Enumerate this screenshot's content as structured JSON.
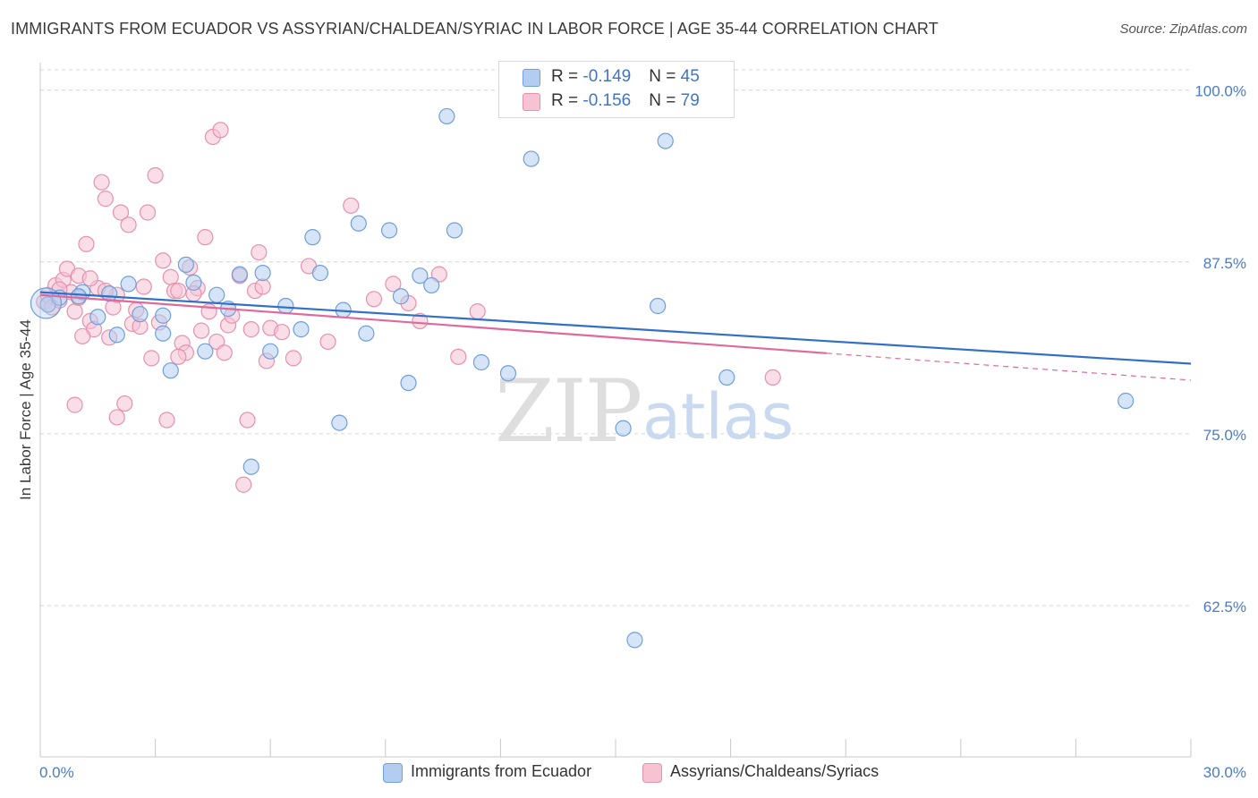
{
  "header": {
    "title": "IMMIGRANTS FROM ECUADOR VS ASSYRIAN/CHALDEAN/SYRIAC IN LABOR FORCE | AGE 35-44 CORRELATION CHART",
    "source": "Source: ZipAtlas.com"
  },
  "watermark": {
    "zip": "ZIP",
    "atlas": "atlas"
  },
  "legend": {
    "series1": {
      "r_label": "R = ",
      "r_value": "-0.149",
      "n_label": "N = ",
      "n_value": "45"
    },
    "series2": {
      "r_label": "R = ",
      "r_value": "-0.156",
      "n_label": "N = ",
      "n_value": "79"
    }
  },
  "colors": {
    "blue_fill": "#b3cdf0",
    "blue_stroke": "#6f9fdc",
    "blue_line": "#3270c8",
    "pink_fill": "#f6c3d3",
    "pink_stroke": "#e890ad",
    "pink_line": "#e0689a",
    "grid": "#d6d6d6",
    "axis_text": "#4a7bc8"
  },
  "chart_data": {
    "type": "scatter",
    "xlabel": "",
    "ylabel": "In Labor Force | Age 35-44",
    "xlim": [
      0,
      30
    ],
    "ylim": [
      51.5,
      102
    ],
    "x_tick_labels": [
      "0.0%",
      "30.0%"
    ],
    "y_ticks": [
      62.5,
      75.0,
      87.5,
      100.0
    ],
    "y_tick_labels": [
      "62.5%",
      "75.0%",
      "87.5%",
      "100.0%"
    ],
    "grid": "horizontal dashed",
    "legend_position": "top-center and bottom",
    "series": [
      {
        "name": "Immigrants from Ecuador",
        "color": "#6f9fdc",
        "trend": {
          "x": [
            0,
            30
          ],
          "y": [
            85.3,
            80.1
          ],
          "dashed_from": null
        },
        "points": [
          [
            0.2,
            84.4
          ],
          [
            1.1,
            85.3
          ],
          [
            2.3,
            85.9
          ],
          [
            2.6,
            83.7
          ],
          [
            3.2,
            83.6
          ],
          [
            3.4,
            79.6
          ],
          [
            3.2,
            82.3
          ],
          [
            3.8,
            87.3
          ],
          [
            4.0,
            86.0
          ],
          [
            4.3,
            81.0
          ],
          [
            4.6,
            85.1
          ],
          [
            4.9,
            84.1
          ],
          [
            5.2,
            86.6
          ],
          [
            5.5,
            72.6
          ],
          [
            5.8,
            86.7
          ],
          [
            6.0,
            81.0
          ],
          [
            6.4,
            84.3
          ],
          [
            6.8,
            82.6
          ],
          [
            7.1,
            89.3
          ],
          [
            7.3,
            86.7
          ],
          [
            7.8,
            75.8
          ],
          [
            7.9,
            84.0
          ],
          [
            8.3,
            90.3
          ],
          [
            8.5,
            82.3
          ],
          [
            9.1,
            89.8
          ],
          [
            9.4,
            85.0
          ],
          [
            9.6,
            78.7
          ],
          [
            9.9,
            86.5
          ],
          [
            10.2,
            85.8
          ],
          [
            10.6,
            98.1
          ],
          [
            10.8,
            89.8
          ],
          [
            11.5,
            80.2
          ],
          [
            12.2,
            79.4
          ],
          [
            12.8,
            95.0
          ],
          [
            15.2,
            75.4
          ],
          [
            15.5,
            60.0
          ],
          [
            16.1,
            84.3
          ],
          [
            16.3,
            96.3
          ],
          [
            17.9,
            79.1
          ],
          [
            28.3,
            77.4
          ],
          [
            1.0,
            85.0
          ],
          [
            1.8,
            85.2
          ],
          [
            2.0,
            82.2
          ],
          [
            0.5,
            84.9
          ],
          [
            1.5,
            83.5
          ]
        ]
      },
      {
        "name": "Assyrians/Chaldeans/Syriacs",
        "color": "#e890ad",
        "trend": {
          "x": [
            0,
            30
          ],
          "y": [
            85.1,
            78.9
          ],
          "dashed_from": 20.5
        },
        "points": [
          [
            0.1,
            84.6
          ],
          [
            0.2,
            85.1
          ],
          [
            0.3,
            84.2
          ],
          [
            0.4,
            85.8
          ],
          [
            0.5,
            84.7
          ],
          [
            0.6,
            86.2
          ],
          [
            0.7,
            87.0
          ],
          [
            0.8,
            85.3
          ],
          [
            0.9,
            83.9
          ],
          [
            1.0,
            84.9
          ],
          [
            1.0,
            86.5
          ],
          [
            1.2,
            88.8
          ],
          [
            1.3,
            83.2
          ],
          [
            1.4,
            82.6
          ],
          [
            1.5,
            85.6
          ],
          [
            1.6,
            93.3
          ],
          [
            1.7,
            92.1
          ],
          [
            1.8,
            82.0
          ],
          [
            1.9,
            84.2
          ],
          [
            2.0,
            76.2
          ],
          [
            2.1,
            91.1
          ],
          [
            2.2,
            77.2
          ],
          [
            2.3,
            90.2
          ],
          [
            2.4,
            83.0
          ],
          [
            2.5,
            84.0
          ],
          [
            2.6,
            82.8
          ],
          [
            2.7,
            85.7
          ],
          [
            2.8,
            91.1
          ],
          [
            2.9,
            80.5
          ],
          [
            3.0,
            93.8
          ],
          [
            3.1,
            83.1
          ],
          [
            3.2,
            87.6
          ],
          [
            3.3,
            76.0
          ],
          [
            3.4,
            86.4
          ],
          [
            3.5,
            85.4
          ],
          [
            3.6,
            85.4
          ],
          [
            3.7,
            81.6
          ],
          [
            3.8,
            80.9
          ],
          [
            3.9,
            87.1
          ],
          [
            4.1,
            85.6
          ],
          [
            4.2,
            82.5
          ],
          [
            4.3,
            89.3
          ],
          [
            4.4,
            83.9
          ],
          [
            4.5,
            96.6
          ],
          [
            4.6,
            81.7
          ],
          [
            4.7,
            97.1
          ],
          [
            4.8,
            80.9
          ],
          [
            4.9,
            82.9
          ],
          [
            5.0,
            83.6
          ],
          [
            5.2,
            86.5
          ],
          [
            5.3,
            71.3
          ],
          [
            5.4,
            76.0
          ],
          [
            5.5,
            82.6
          ],
          [
            5.6,
            85.4
          ],
          [
            5.7,
            88.2
          ],
          [
            5.8,
            85.7
          ],
          [
            5.9,
            80.3
          ],
          [
            6.0,
            82.7
          ],
          [
            6.3,
            82.4
          ],
          [
            6.6,
            80.5
          ],
          [
            7.0,
            87.2
          ],
          [
            7.5,
            81.7
          ],
          [
            8.1,
            91.6
          ],
          [
            8.7,
            84.8
          ],
          [
            9.2,
            85.9
          ],
          [
            9.6,
            84.5
          ],
          [
            9.9,
            83.2
          ],
          [
            10.4,
            86.6
          ],
          [
            10.9,
            80.6
          ],
          [
            11.4,
            83.9
          ],
          [
            19.1,
            79.1
          ],
          [
            0.9,
            77.1
          ],
          [
            1.1,
            82.1
          ],
          [
            2.0,
            85.1
          ],
          [
            1.3,
            86.3
          ],
          [
            3.6,
            80.6
          ],
          [
            4.0,
            85.2
          ],
          [
            0.5,
            85.5
          ],
          [
            1.7,
            85.4
          ]
        ]
      }
    ]
  },
  "bottom_legend": {
    "item1": "Immigrants from Ecuador",
    "item2": "Assyrians/Chaldeans/Syriacs"
  }
}
